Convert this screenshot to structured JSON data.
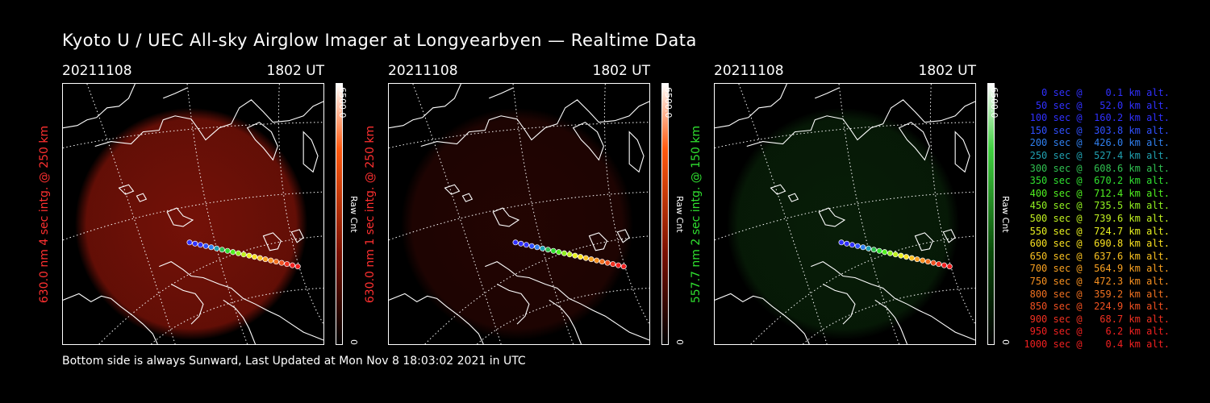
{
  "title": "Kyoto U / UEC All-sky Airglow Imager at Longyearbyen — Realtime Data",
  "footer": "Bottom side is always Sunward, Last Updated at Mon Nov  8 18:03:02 2021 in UTC",
  "panels": [
    {
      "date": "20211108",
      "time": "1802 UT",
      "ylabel": "630.0 nm  4 sec intg. @ 250 km",
      "label_color": "#ff3030",
      "colorbar_max": "6500.0",
      "colorbar_unit": "Raw Cnt",
      "colorbar_min": "0",
      "colorbar_color": "#ff6020",
      "glow_color": "#7a1208",
      "glow_strength": 0.95
    },
    {
      "date": "20211108",
      "time": "1802 UT",
      "ylabel": "630.0 nm  1 sec intg. @ 250 km",
      "label_color": "#ff3030",
      "colorbar_max": "6500.0",
      "colorbar_unit": "Raw Cnt",
      "colorbar_min": "0",
      "colorbar_color": "#ff6020",
      "glow_color": "#3a0804",
      "glow_strength": 0.6
    },
    {
      "date": "20211108",
      "time": "1802 UT",
      "ylabel": "557.7 nm  2 sec intg. @ 150 km",
      "label_color": "#30e030",
      "colorbar_max": "6500.0",
      "colorbar_unit": "Raw Cnt",
      "colorbar_min": "0",
      "colorbar_color": "#40d040",
      "glow_color": "#0b2a0b",
      "glow_strength": 0.7
    }
  ],
  "trajectory": [
    {
      "text": "0 sec @    0.1 km alt.",
      "color": "#3030ff"
    },
    {
      "text": "50 sec @   52.0 km alt.",
      "color": "#3030ff"
    },
    {
      "text": "100 sec @  160.2 km alt.",
      "color": "#3030ff"
    },
    {
      "text": "150 sec @  303.8 km alt.",
      "color": "#3050ff"
    },
    {
      "text": "200 sec @  426.0 km alt.",
      "color": "#3080f0"
    },
    {
      "text": "250 sec @  527.4 km alt.",
      "color": "#20a0b0"
    },
    {
      "text": "300 sec @  608.6 km alt.",
      "color": "#30c050"
    },
    {
      "text": "350 sec @  670.2 km alt.",
      "color": "#30e030"
    },
    {
      "text": "400 sec @  712.4 km alt.",
      "color": "#50f020"
    },
    {
      "text": "450 sec @  735.5 km alt.",
      "color": "#90f020"
    },
    {
      "text": "500 sec @  739.6 km alt.",
      "color": "#c0f020"
    },
    {
      "text": "550 sec @  724.7 km alt.",
      "color": "#e8f020"
    },
    {
      "text": "600 sec @  690.8 km alt.",
      "color": "#f8e020"
    },
    {
      "text": "650 sec @  637.6 km alt.",
      "color": "#f8c020"
    },
    {
      "text": "700 sec @  564.9 km alt.",
      "color": "#f8a020"
    },
    {
      "text": "750 sec @  472.3 km alt.",
      "color": "#f89020"
    },
    {
      "text": "800 sec @  359.2 km alt.",
      "color": "#f07020"
    },
    {
      "text": "850 sec @  224.9 km alt.",
      "color": "#f05020"
    },
    {
      "text": "900 sec @   68.7 km alt.",
      "color": "#f03020"
    },
    {
      "text": "950 sec @    6.2 km alt.",
      "color": "#f02020"
    },
    {
      "text": "1000 sec @    0.4 km alt.",
      "color": "#f02020"
    }
  ]
}
